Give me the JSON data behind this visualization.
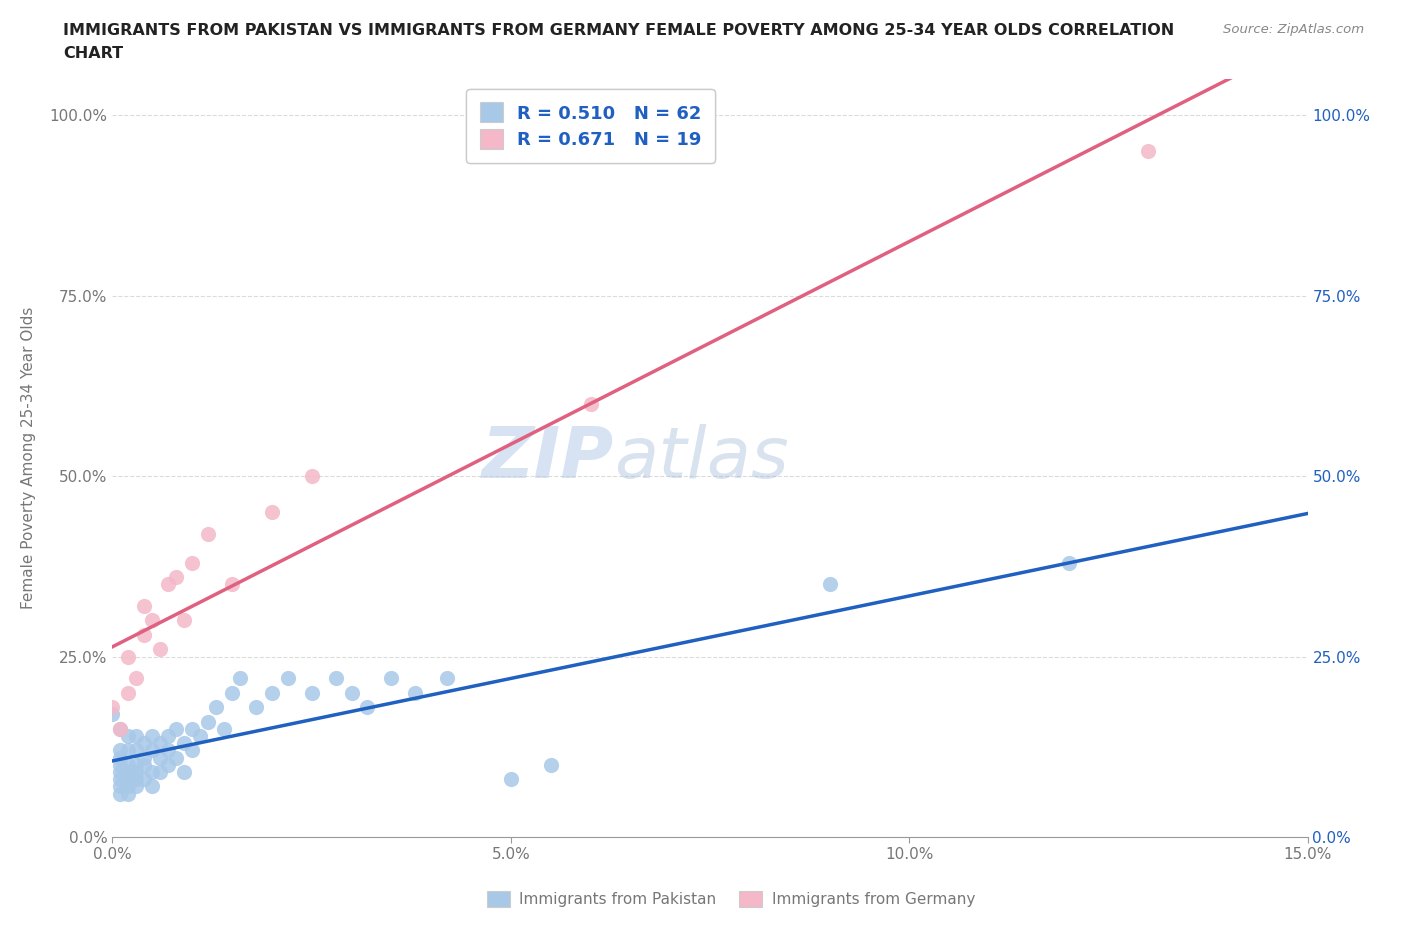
{
  "title_line1": "IMMIGRANTS FROM PAKISTAN VS IMMIGRANTS FROM GERMANY FEMALE POVERTY AMONG 25-34 YEAR OLDS CORRELATION",
  "title_line2": "CHART",
  "source": "Source: ZipAtlas.com",
  "ylabel": "Female Poverty Among 25-34 Year Olds",
  "xlim": [
    0.0,
    0.15
  ],
  "ylim": [
    0.0,
    1.05
  ],
  "xticks": [
    0.0,
    0.05,
    0.1,
    0.15
  ],
  "xticklabels": [
    "0.0%",
    "5.0%",
    "10.0%",
    "15.0%"
  ],
  "yticks": [
    0.0,
    0.25,
    0.5,
    0.75,
    1.0
  ],
  "yticklabels": [
    "0.0%",
    "25.0%",
    "50.0%",
    "75.0%",
    "100.0%"
  ],
  "pakistan_color": "#a8c8e8",
  "germany_color": "#f4b8c8",
  "pakistan_line_color": "#2060c0",
  "germany_line_color": "#e06080",
  "R_pakistan": 0.51,
  "N_pakistan": 62,
  "R_germany": 0.671,
  "N_germany": 19,
  "watermark_zip": "ZIP",
  "watermark_atlas": "atlas",
  "legend_label_pakistan": "Immigrants from Pakistan",
  "legend_label_germany": "Immigrants from Germany",
  "pakistan_x": [
    0.0,
    0.001,
    0.001,
    0.001,
    0.001,
    0.001,
    0.001,
    0.001,
    0.001,
    0.002,
    0.002,
    0.002,
    0.002,
    0.002,
    0.002,
    0.002,
    0.003,
    0.003,
    0.003,
    0.003,
    0.003,
    0.003,
    0.004,
    0.004,
    0.004,
    0.004,
    0.005,
    0.005,
    0.005,
    0.005,
    0.006,
    0.006,
    0.006,
    0.007,
    0.007,
    0.007,
    0.008,
    0.008,
    0.009,
    0.009,
    0.01,
    0.01,
    0.011,
    0.012,
    0.013,
    0.014,
    0.015,
    0.016,
    0.018,
    0.02,
    0.022,
    0.025,
    0.028,
    0.03,
    0.032,
    0.035,
    0.038,
    0.042,
    0.05,
    0.055,
    0.09,
    0.12
  ],
  "pakistan_y": [
    0.17,
    0.15,
    0.12,
    0.1,
    0.08,
    0.07,
    0.06,
    0.09,
    0.11,
    0.1,
    0.08,
    0.12,
    0.14,
    0.07,
    0.09,
    0.06,
    0.1,
    0.12,
    0.08,
    0.14,
    0.07,
    0.09,
    0.11,
    0.13,
    0.08,
    0.1,
    0.12,
    0.09,
    0.14,
    0.07,
    0.11,
    0.13,
    0.09,
    0.12,
    0.14,
    0.1,
    0.15,
    0.11,
    0.13,
    0.09,
    0.15,
    0.12,
    0.14,
    0.16,
    0.18,
    0.15,
    0.2,
    0.22,
    0.18,
    0.2,
    0.22,
    0.2,
    0.22,
    0.2,
    0.18,
    0.22,
    0.2,
    0.22,
    0.08,
    0.1,
    0.35,
    0.38
  ],
  "germany_x": [
    0.0,
    0.001,
    0.002,
    0.002,
    0.003,
    0.004,
    0.004,
    0.005,
    0.006,
    0.007,
    0.008,
    0.009,
    0.01,
    0.012,
    0.015,
    0.02,
    0.025,
    0.06,
    0.13
  ],
  "germany_y": [
    0.18,
    0.15,
    0.2,
    0.25,
    0.22,
    0.28,
    0.32,
    0.3,
    0.26,
    0.35,
    0.36,
    0.3,
    0.38,
    0.42,
    0.35,
    0.45,
    0.5,
    0.6,
    0.95
  ]
}
